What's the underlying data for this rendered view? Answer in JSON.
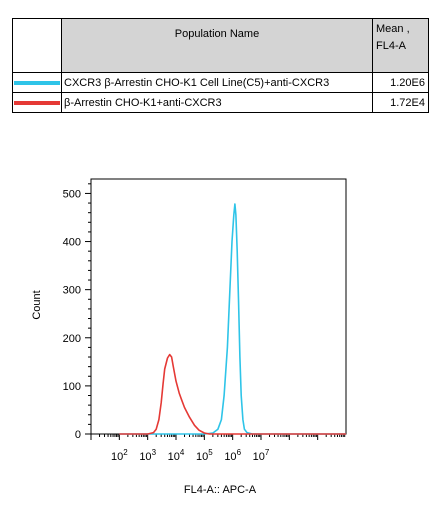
{
  "legend_table": {
    "header_name": "Population Name",
    "header_mean_line1": "Mean ,",
    "header_mean_line2": "FL4-A",
    "rows": [
      {
        "color": "#2ec4e8",
        "name": "CXCR3 β-Arrestin CHO-K1 Cell Line(C5)+anti-CXCR3",
        "mean": "1.20E6"
      },
      {
        "color": "#e53935",
        "name": "β-Arrestin CHO-K1+anti-CXCR3",
        "mean": "1.72E4"
      }
    ]
  },
  "chart_data": {
    "type": "line",
    "title": "",
    "xlabel": "FL4-A:: APC-A",
    "ylabel": "Count",
    "x_scale": "log",
    "x_ticks": [
      {
        "base": "10",
        "exp": "2",
        "value": 100
      },
      {
        "base": "10",
        "exp": "3",
        "value": 1000
      },
      {
        "base": "10",
        "exp": "4",
        "value": 10000
      },
      {
        "base": "10",
        "exp": "5",
        "value": 100000
      },
      {
        "base": "10",
        "exp": "6",
        "value": 1000000
      },
      {
        "base": "10",
        "exp": "7",
        "value": 10000000
      }
    ],
    "xlim": [
      10,
      10000000000.0
    ],
    "ylim": [
      0,
      530
    ],
    "y_ticks": [
      "0",
      "100",
      "200",
      "300",
      "400",
      "500"
    ],
    "series": [
      {
        "name": "CXCR3 β-Arrestin CHO-K1 Cell Line(C5)+anti-CXCR3",
        "color": "#2ec4e8",
        "points": [
          [
            100,
            0
          ],
          [
            100000,
            0
          ],
          [
            200000,
            2
          ],
          [
            300000,
            10
          ],
          [
            400000,
            30
          ],
          [
            500000,
            80
          ],
          [
            650000,
            180
          ],
          [
            800000,
            300
          ],
          [
            950000,
            400
          ],
          [
            1100000,
            455
          ],
          [
            1200000,
            478
          ],
          [
            1300000,
            455
          ],
          [
            1450000,
            380
          ],
          [
            1600000,
            280
          ],
          [
            1800000,
            160
          ],
          [
            2000000,
            80
          ],
          [
            2300000,
            30
          ],
          [
            2600000,
            10
          ],
          [
            3200000,
            3
          ],
          [
            5000000,
            0
          ],
          [
            10000000000.0,
            0
          ]
        ]
      },
      {
        "name": "β-Arrestin CHO-K1+anti-CXCR3",
        "color": "#e53935",
        "points": [
          [
            100,
            0
          ],
          [
            1000,
            0
          ],
          [
            1600,
            3
          ],
          [
            2000,
            10
          ],
          [
            2500,
            30
          ],
          [
            3000,
            65
          ],
          [
            3500,
            105
          ],
          [
            4000,
            135
          ],
          [
            5000,
            158
          ],
          [
            6000,
            165
          ],
          [
            7000,
            160
          ],
          [
            8000,
            140
          ],
          [
            10000,
            110
          ],
          [
            13000,
            85
          ],
          [
            16000,
            70
          ],
          [
            20000,
            55
          ],
          [
            30000,
            35
          ],
          [
            45000,
            18
          ],
          [
            65000,
            8
          ],
          [
            100000,
            2
          ],
          [
            150000,
            0
          ],
          [
            10000000000.0,
            0
          ]
        ]
      }
    ]
  }
}
